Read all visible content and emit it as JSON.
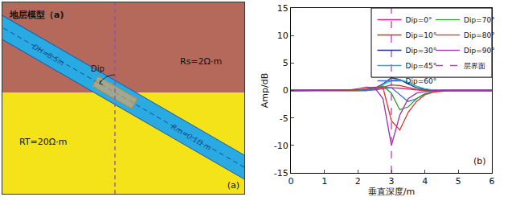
{
  "diagram": {
    "title": "地层模型（a)",
    "upper_layer": {
      "label": "Rs=2Ω·m",
      "color": "#b5695b"
    },
    "lower_layer": {
      "label": "RT=20Ω·m",
      "color": "#f5e31a"
    },
    "borehole": {
      "diameter_label": "DH=8.5in",
      "mud_label": "Rm=0.1Ω·m",
      "color": "#29aae2"
    },
    "tool_angle_label": "Dip",
    "panel_label": "(a)"
  },
  "chart_data": {
    "type": "line",
    "x_label": "垂直深度/m",
    "y_label": "Amp/dB",
    "panel_label": "(b)",
    "grid": false,
    "legend": "upper right",
    "x": [
      0,
      0.25,
      0.5,
      0.75,
      1,
      1.25,
      1.5,
      1.75,
      2,
      2.25,
      2.5,
      2.75,
      3,
      3.25,
      3.5,
      3.75,
      4,
      4.25,
      4.5,
      4.75,
      5,
      5.25,
      5.5,
      5.75,
      6
    ],
    "xlim": [
      0,
      6
    ],
    "xticks": [
      0,
      1,
      2,
      3,
      4,
      5,
      6
    ],
    "ylim": [
      -15,
      15
    ],
    "yticks": [
      -15,
      -10,
      -5,
      0,
      5,
      10,
      15
    ],
    "series": [
      {
        "name": "Dip=0°",
        "color": "#e0218a",
        "values": [
          0,
          0,
          0,
          0,
          0,
          0,
          0,
          0,
          0,
          0,
          0.1,
          0.3,
          0.5,
          0.4,
          0.2,
          0.1,
          0,
          0,
          0,
          0,
          0,
          0,
          0,
          0,
          0
        ]
      },
      {
        "name": "Dip=10°",
        "color": "#c0392b",
        "values": [
          0,
          0,
          0,
          0,
          0,
          0,
          0,
          0,
          0,
          0,
          0.2,
          0.6,
          1.0,
          0.9,
          0.5,
          0.2,
          0,
          0,
          0,
          0,
          0,
          0,
          0,
          0,
          0
        ]
      },
      {
        "name": "Dip=30°",
        "color": "#1f2f8f",
        "values": [
          0,
          0,
          0,
          0,
          0,
          0,
          0,
          0,
          0,
          0.1,
          0.4,
          1.2,
          2.3,
          2.0,
          1.2,
          0.5,
          0.2,
          0,
          0,
          0,
          0,
          0,
          0,
          0,
          0
        ]
      },
      {
        "name": "Dip=45°",
        "color": "#1cb5c9",
        "values": [
          0,
          0,
          0,
          0,
          0,
          0,
          0,
          0,
          0,
          0,
          0.3,
          1.0,
          1.8,
          2.0,
          1.5,
          0.8,
          0.3,
          0.1,
          0,
          0,
          0,
          0,
          0,
          0,
          0
        ]
      },
      {
        "name": "Dip=60°",
        "color": "#3a6fd8",
        "values": [
          0,
          0,
          0,
          0,
          0,
          0,
          0,
          0,
          0,
          0,
          0.2,
          0.6,
          0.5,
          -0.8,
          -2.0,
          -1.5,
          -0.6,
          -0.2,
          0,
          0,
          0,
          0,
          0,
          0,
          0
        ]
      },
      {
        "name": "Dip=70°",
        "color": "#2ca02c",
        "values": [
          0,
          0,
          0,
          0,
          0,
          0,
          0,
          0,
          0,
          0.2,
          0.5,
          0.8,
          -0.5,
          -3.5,
          -3.0,
          -1.5,
          -0.6,
          -0.2,
          0,
          0,
          0,
          0,
          0,
          0,
          0
        ]
      },
      {
        "name": "Dip=80°",
        "color": "#e0302a",
        "values": [
          0,
          0,
          0,
          0,
          0,
          0,
          0,
          0,
          0.1,
          0.3,
          0.6,
          0.5,
          -5.5,
          -7.2,
          -4.0,
          -2.0,
          -0.8,
          -0.3,
          -0.1,
          0,
          0,
          0,
          0,
          0,
          0
        ]
      },
      {
        "name": "Dip=90°",
        "color": "#9b2fae",
        "values": [
          0,
          0,
          0,
          0,
          0,
          0,
          0,
          0.1,
          0.3,
          0.6,
          0.5,
          -1.5,
          -10,
          -4.5,
          -1.5,
          -0.5,
          -0.2,
          0,
          0,
          0,
          0,
          0,
          0,
          0,
          0
        ]
      }
    ],
    "interface": {
      "name": "层界面",
      "x": 3,
      "color": "#c43cc4",
      "line_style": "dash"
    }
  }
}
